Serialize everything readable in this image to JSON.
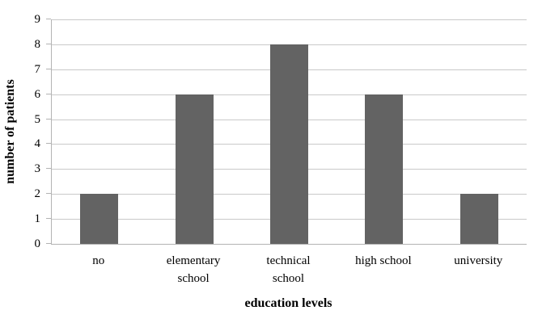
{
  "chart_data": {
    "type": "bar",
    "categories": [
      "no",
      "elementary school",
      "technical school",
      "high school",
      "university"
    ],
    "values": [
      2,
      6,
      8,
      6,
      2
    ],
    "title": "",
    "xlabel": "education levels",
    "ylabel": "number of patients",
    "ylim": [
      0,
      9
    ],
    "ytick_step": 1,
    "yticks": [
      0,
      1,
      2,
      3,
      4,
      5,
      6,
      7,
      8,
      9
    ],
    "grid": true,
    "legend": "none",
    "bar_color": "#636363",
    "gridline_color": "#C9C9C9",
    "axis_color": "#B3B3B3",
    "text_color": "#000000",
    "background_color": "#FFFFFF"
  }
}
